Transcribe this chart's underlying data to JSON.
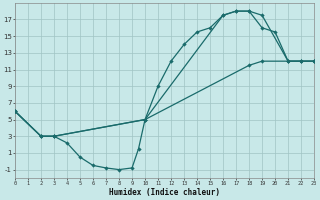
{
  "xlabel": "Humidex (Indice chaleur)",
  "bg_color": "#c8e8e8",
  "line_color": "#1a6b6b",
  "xlim": [
    0,
    23
  ],
  "ylim": [
    -2,
    19
  ],
  "xticks": [
    0,
    1,
    2,
    3,
    4,
    5,
    6,
    7,
    8,
    9,
    10,
    11,
    12,
    13,
    14,
    15,
    16,
    17,
    18,
    19,
    20,
    21,
    22,
    23
  ],
  "yticks": [
    -1,
    1,
    3,
    5,
    7,
    9,
    11,
    13,
    15,
    17
  ],
  "curve1_x": [
    0,
    2,
    3,
    4,
    5,
    6,
    7,
    8,
    9,
    9.5,
    10,
    11,
    12,
    13,
    14,
    15,
    16,
    17,
    18,
    19,
    21,
    22,
    23
  ],
  "curve1_y": [
    6,
    3,
    3,
    2.2,
    0.5,
    -0.5,
    -0.8,
    -1.0,
    -0.8,
    1.5,
    5,
    9,
    12,
    14,
    15.5,
    16,
    17.5,
    18,
    18,
    17.5,
    12,
    12,
    12
  ],
  "curve2_x": [
    0,
    2,
    3,
    10,
    18,
    19,
    21,
    22,
    23
  ],
  "curve2_y": [
    6,
    3,
    3,
    5,
    11.5,
    12,
    12,
    12,
    12
  ],
  "curve3_x": [
    0,
    2,
    3,
    10,
    16,
    17,
    18,
    19,
    20,
    21,
    22,
    23
  ],
  "curve3_y": [
    6,
    3,
    3,
    5,
    17.5,
    18,
    18,
    16,
    15.5,
    12,
    12,
    12
  ]
}
